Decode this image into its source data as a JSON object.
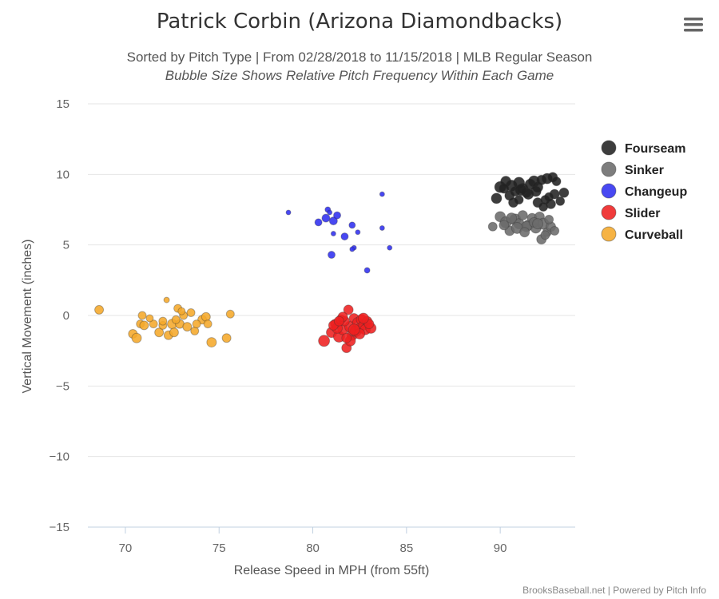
{
  "chart_data": {
    "type": "scatter",
    "title": "Patrick Corbin (Arizona Diamondbacks)",
    "subtitle": "Sorted by Pitch Type | From 02/28/2018 to 11/15/2018 | MLB Regular Season",
    "subtitle2": "Bubble Size Shows Relative Pitch Frequency Within Each Game",
    "xlabel": "Release Speed in MPH (from 55ft)",
    "ylabel": "Vertical Movement (inches)",
    "xlim": [
      68,
      94
    ],
    "ylim": [
      -15,
      15
    ],
    "x_ticks": [
      "70",
      "75",
      "80",
      "85",
      "90"
    ],
    "y_ticks": [
      "15",
      "10",
      "5",
      "0",
      "−5",
      "−10",
      "−15"
    ],
    "grid": true,
    "legend_position": "right",
    "credits": "BrooksBaseball.net | Powered by Pitch Info",
    "series": [
      {
        "name": "Fourseam",
        "color": "#222222",
        "points": [
          [
            90.0,
            9.1
          ],
          [
            90.3,
            9.5
          ],
          [
            90.6,
            9.2
          ],
          [
            90.8,
            8.8
          ],
          [
            91.0,
            9.4
          ],
          [
            91.2,
            9.0
          ],
          [
            91.4,
            8.7
          ],
          [
            91.6,
            9.3
          ],
          [
            91.8,
            9.5
          ],
          [
            92.0,
            9.1
          ],
          [
            92.2,
            9.6
          ],
          [
            92.5,
            9.7
          ],
          [
            92.8,
            9.8
          ],
          [
            93.0,
            9.5
          ],
          [
            89.8,
            8.3
          ],
          [
            90.5,
            8.5
          ],
          [
            91.0,
            8.2
          ],
          [
            91.5,
            8.6
          ],
          [
            92.0,
            8.0
          ],
          [
            92.4,
            8.2
          ],
          [
            92.7,
            7.9
          ],
          [
            93.2,
            8.1
          ],
          [
            93.4,
            8.7
          ],
          [
            92.9,
            8.6
          ],
          [
            92.3,
            7.7
          ],
          [
            91.1,
            8.9
          ],
          [
            90.7,
            8.0
          ],
          [
            91.9,
            8.8
          ],
          [
            90.2,
            9.0
          ],
          [
            92.6,
            8.4
          ]
        ],
        "sizes": [
          14,
          13,
          14,
          12,
          14,
          13,
          12,
          13,
          14,
          13,
          12,
          13,
          12,
          11,
          13,
          12,
          11,
          13,
          12,
          11,
          12,
          11,
          12,
          12,
          11,
          14,
          12,
          13,
          12,
          11
        ]
      },
      {
        "name": "Sinker",
        "color": "#6b6b6b",
        "points": [
          [
            89.6,
            6.3
          ],
          [
            90.0,
            7.0
          ],
          [
            90.3,
            6.6
          ],
          [
            90.5,
            6.0
          ],
          [
            90.8,
            6.8
          ],
          [
            91.0,
            6.5
          ],
          [
            91.2,
            7.1
          ],
          [
            91.5,
            6.4
          ],
          [
            91.7,
            6.9
          ],
          [
            91.9,
            6.2
          ],
          [
            92.1,
            7.0
          ],
          [
            92.3,
            6.5
          ],
          [
            92.5,
            5.9
          ],
          [
            92.7,
            6.3
          ],
          [
            92.9,
            6.0
          ],
          [
            92.2,
            5.4
          ],
          [
            92.4,
            5.7
          ],
          [
            90.2,
            6.4
          ],
          [
            91.4,
            6.3
          ],
          [
            90.6,
            6.9
          ],
          [
            91.8,
            6.6
          ],
          [
            92.6,
            6.8
          ],
          [
            90.9,
            6.2
          ],
          [
            91.3,
            5.9
          ],
          [
            92.0,
            6.5
          ]
        ],
        "sizes": [
          11,
          13,
          14,
          12,
          14,
          13,
          12,
          13,
          12,
          13,
          12,
          14,
          11,
          12,
          11,
          12,
          11,
          12,
          13,
          13,
          12,
          11,
          14,
          12,
          13
        ]
      },
      {
        "name": "Changeup",
        "color": "#2f2ff0",
        "points": [
          [
            78.7,
            7.3
          ],
          [
            80.3,
            6.6
          ],
          [
            80.7,
            6.9
          ],
          [
            80.8,
            7.5
          ],
          [
            81.1,
            6.7
          ],
          [
            81.3,
            7.1
          ],
          [
            80.9,
            7.3
          ],
          [
            81.7,
            5.6
          ],
          [
            82.1,
            6.4
          ],
          [
            81.1,
            5.8
          ],
          [
            82.4,
            5.9
          ],
          [
            82.2,
            4.8
          ],
          [
            81.0,
            4.3
          ],
          [
            82.9,
            3.2
          ],
          [
            83.7,
            8.6
          ],
          [
            83.7,
            6.2
          ],
          [
            84.1,
            4.8
          ],
          [
            82.1,
            4.7
          ]
        ],
        "sizes": [
          6,
          9,
          10,
          7,
          10,
          9,
          6,
          9,
          8,
          6,
          6,
          6,
          9,
          7,
          6,
          6,
          6,
          6
        ]
      },
      {
        "name": "Slider",
        "color": "#ee2020",
        "points": [
          [
            80.6,
            -1.8
          ],
          [
            81.0,
            -1.2
          ],
          [
            81.2,
            -0.6
          ],
          [
            81.4,
            -1.5
          ],
          [
            81.5,
            -0.3
          ],
          [
            81.6,
            -1.0
          ],
          [
            81.8,
            -2.3
          ],
          [
            81.9,
            0.4
          ],
          [
            82.0,
            -0.8
          ],
          [
            82.1,
            -1.4
          ],
          [
            82.2,
            -0.2
          ],
          [
            82.3,
            -1.1
          ],
          [
            82.4,
            -0.5
          ],
          [
            82.5,
            -0.9
          ],
          [
            82.6,
            -0.3
          ],
          [
            82.7,
            -0.7
          ],
          [
            82.8,
            -1.0
          ],
          [
            82.9,
            -0.4
          ],
          [
            83.1,
            -0.9
          ],
          [
            83.0,
            -0.6
          ],
          [
            81.3,
            -0.9
          ],
          [
            81.7,
            -0.4
          ],
          [
            82.0,
            -1.8
          ],
          [
            81.1,
            -0.7
          ],
          [
            82.5,
            -1.3
          ],
          [
            81.8,
            -1.6
          ],
          [
            82.2,
            -1.0
          ],
          [
            81.6,
            -0.1
          ],
          [
            82.7,
            -0.2
          ],
          [
            81.4,
            -0.4
          ]
        ],
        "sizes": [
          14,
          13,
          12,
          14,
          12,
          13,
          12,
          12,
          14,
          13,
          12,
          14,
          13,
          12,
          13,
          12,
          13,
          12,
          13,
          12,
          13,
          12,
          13,
          12,
          13,
          12,
          14,
          12,
          13,
          12
        ]
      },
      {
        "name": "Curveball",
        "color": "#f5a92a",
        "points": [
          [
            68.6,
            0.4
          ],
          [
            70.4,
            -1.3
          ],
          [
            70.6,
            -1.6
          ],
          [
            70.8,
            -0.6
          ],
          [
            71.0,
            -0.7
          ],
          [
            70.9,
            0.0
          ],
          [
            71.5,
            -0.6
          ],
          [
            71.8,
            -1.2
          ],
          [
            72.0,
            -0.7
          ],
          [
            72.2,
            1.1
          ],
          [
            72.3,
            -1.4
          ],
          [
            72.5,
            -0.6
          ],
          [
            72.6,
            -1.2
          ],
          [
            72.8,
            0.5
          ],
          [
            72.9,
            -0.6
          ],
          [
            73.1,
            0.0
          ],
          [
            73.3,
            -0.8
          ],
          [
            73.5,
            0.2
          ],
          [
            73.7,
            -1.1
          ],
          [
            74.1,
            -0.3
          ],
          [
            74.3,
            -0.1
          ],
          [
            74.6,
            -1.9
          ],
          [
            75.4,
            -1.6
          ],
          [
            75.6,
            0.1
          ],
          [
            73.0,
            0.3
          ],
          [
            71.3,
            -0.2
          ],
          [
            72.0,
            -0.4
          ],
          [
            74.4,
            -0.6
          ],
          [
            73.8,
            -0.6
          ],
          [
            72.7,
            -0.3
          ]
        ],
        "sizes": [
          11,
          11,
          12,
          10,
          11,
          10,
          10,
          11,
          10,
          7,
          11,
          12,
          11,
          10,
          11,
          10,
          11,
          10,
          10,
          11,
          11,
          12,
          11,
          10,
          9,
          9,
          10,
          10,
          10,
          10
        ]
      }
    ]
  }
}
